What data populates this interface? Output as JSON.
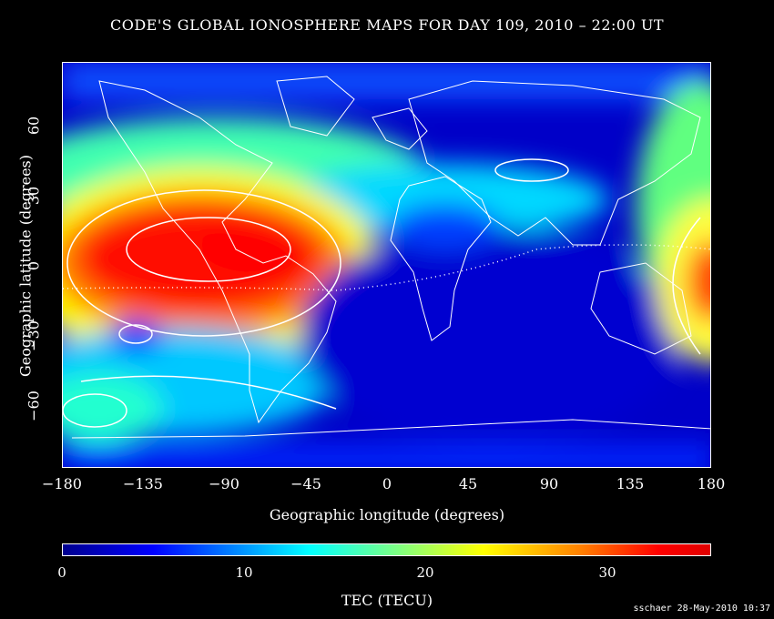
{
  "title": "CODE'S GLOBAL IONOSPHERE MAPS FOR DAY 109, 2010 – 22:00 UT",
  "x_axis": {
    "label": "Geographic longitude (degrees)",
    "ticks": [
      "−180",
      "−135",
      "−90",
      "−45",
      "0",
      "45",
      "90",
      "135",
      "180"
    ]
  },
  "y_axis": {
    "label": "Geographic latitude (degrees)",
    "ticks": [
      "60",
      "30",
      "0",
      "−30",
      "−60"
    ]
  },
  "colorbar": {
    "label": "TEC (TECU)",
    "ticks": [
      "0",
      "10",
      "20",
      "30"
    ],
    "range": [
      0,
      36
    ]
  },
  "footer": "sschaer 28-May-2010 10:37",
  "map": {
    "extent": {
      "lon": [
        -180,
        180
      ],
      "lat": [
        -87.5,
        87.5
      ]
    },
    "features": [
      "TEC color field",
      "coastlines",
      "TEC contour lines",
      "magnetic equator (dotted)"
    ]
  }
}
